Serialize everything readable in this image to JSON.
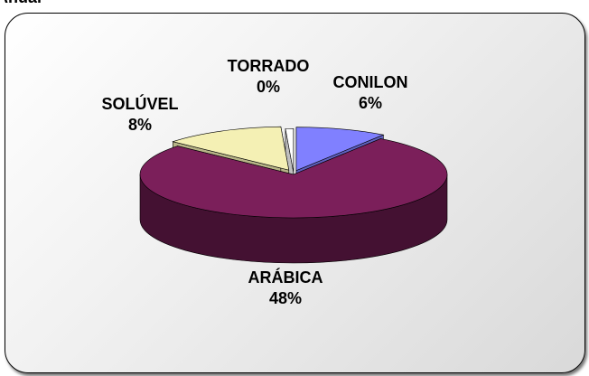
{
  "page_title": "Anual",
  "chart_data": {
    "type": "pie",
    "style": "3d-exploded",
    "categories": [
      "CONILON",
      "ARÁBICA",
      "SOLÚVEL",
      "TORRADO"
    ],
    "values": [
      6,
      48,
      8,
      0
    ],
    "data_labels": [
      "6%",
      "48%",
      "8%",
      "0%"
    ],
    "colors": {
      "CONILON": "#8080ff",
      "ARÁBICA": "#7b1f5a",
      "SOLÚVEL": "#f4f0b4",
      "TORRADO": "#ffffff"
    },
    "legend": "none"
  }
}
